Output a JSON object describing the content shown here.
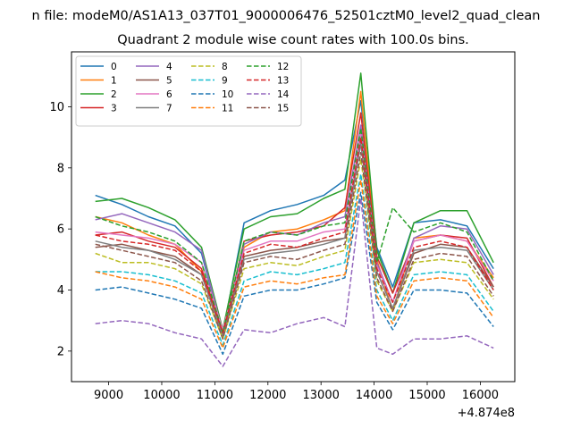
{
  "figure": {
    "supertitle": "n file: modeM0/AS1A13_037T01_9000006476_52501cztM0_level2_quad_clean",
    "title": "Quadrant 2 module wise count rates with 100.0s bins.",
    "x_offset_label": "+4.874e8"
  },
  "chart_data": {
    "type": "line",
    "title": "Quadrant 2 module wise count rates with 100.0s bins.",
    "xlabel": "",
    "ylabel": "",
    "xlim": [
      8300,
      16650
    ],
    "ylim": [
      1.0,
      11.8
    ],
    "x_offset": "+4.874e8",
    "x_ticks": [
      9000,
      10000,
      11000,
      12000,
      13000,
      14000,
      15000,
      16000
    ],
    "y_ticks": [
      2,
      4,
      6,
      8,
      10
    ],
    "grid": false,
    "legend": {
      "position": "top-left",
      "columns": 4
    },
    "x": [
      8750,
      9250,
      9750,
      10250,
      10750,
      11150,
      11550,
      12050,
      12550,
      13050,
      13450,
      13750,
      14050,
      14350,
      14750,
      15250,
      15750,
      16250
    ],
    "series": [
      {
        "name": "0",
        "color": "#1f77b4",
        "dash": "solid",
        "values": [
          7.1,
          6.8,
          6.4,
          6.1,
          5.2,
          2.6,
          6.2,
          6.6,
          6.8,
          7.1,
          7.6,
          10.2,
          5.4,
          4.1,
          6.2,
          6.3,
          6.1,
          4.7
        ]
      },
      {
        "name": "1",
        "color": "#ff7f0e",
        "dash": "solid",
        "values": [
          6.4,
          6.2,
          5.8,
          5.5,
          4.6,
          2.4,
          5.4,
          5.9,
          6.0,
          6.3,
          6.6,
          10.5,
          5.0,
          3.3,
          5.7,
          5.8,
          5.6,
          4.4
        ]
      },
      {
        "name": "2",
        "color": "#2ca02c",
        "dash": "solid",
        "values": [
          6.9,
          7.0,
          6.7,
          6.3,
          5.4,
          2.7,
          6.0,
          6.4,
          6.5,
          7.0,
          7.3,
          11.1,
          5.3,
          3.9,
          6.2,
          6.6,
          6.6,
          4.9
        ]
      },
      {
        "name": "3",
        "color": "#d62728",
        "dash": "solid",
        "values": [
          5.8,
          5.9,
          5.6,
          5.4,
          4.7,
          2.6,
          5.6,
          5.8,
          5.9,
          6.1,
          6.7,
          9.8,
          5.1,
          3.9,
          5.6,
          5.8,
          5.7,
          4.1
        ]
      },
      {
        "name": "4",
        "color": "#9467bd",
        "dash": "solid",
        "values": [
          6.3,
          6.5,
          6.2,
          5.9,
          5.3,
          2.6,
          5.5,
          5.9,
          5.8,
          6.2,
          6.4,
          9.4,
          4.9,
          3.6,
          5.7,
          6.1,
          6.0,
          4.5
        ]
      },
      {
        "name": "5",
        "color": "#8c564b",
        "dash": "solid",
        "values": [
          5.4,
          5.5,
          5.3,
          5.1,
          4.5,
          2.5,
          5.1,
          5.3,
          5.4,
          5.6,
          5.7,
          8.9,
          4.6,
          3.4,
          5.2,
          5.5,
          5.4,
          4.1
        ]
      },
      {
        "name": "6",
        "color": "#e377c2",
        "dash": "solid",
        "values": [
          5.9,
          5.8,
          5.7,
          5.5,
          4.9,
          2.7,
          5.3,
          5.6,
          5.6,
          5.9,
          6.0,
          9.1,
          4.8,
          3.6,
          5.6,
          5.8,
          5.6,
          4.3
        ]
      },
      {
        "name": "7",
        "color": "#7f7f7f",
        "dash": "solid",
        "values": [
          5.6,
          5.4,
          5.3,
          5.0,
          4.5,
          2.5,
          5.0,
          5.2,
          5.3,
          5.5,
          5.7,
          8.8,
          4.6,
          3.4,
          5.3,
          5.4,
          5.3,
          4.0
        ]
      },
      {
        "name": "8",
        "color": "#bcbd22",
        "dash": "dashed",
        "values": [
          5.2,
          4.9,
          4.9,
          4.7,
          4.2,
          2.4,
          4.7,
          4.9,
          4.8,
          5.1,
          5.3,
          8.3,
          4.3,
          3.3,
          4.9,
          5.0,
          4.9,
          3.7
        ]
      },
      {
        "name": "9",
        "color": "#17becf",
        "dash": "dashed",
        "values": [
          4.6,
          4.6,
          4.5,
          4.3,
          3.9,
          2.2,
          4.3,
          4.6,
          4.5,
          4.7,
          4.9,
          7.8,
          4.0,
          3.0,
          4.5,
          4.6,
          4.5,
          3.3
        ]
      },
      {
        "name": "10",
        "color": "#1f77b4",
        "dash": "dashed",
        "values": [
          4.0,
          4.1,
          3.9,
          3.7,
          3.4,
          1.9,
          3.8,
          4.0,
          4.0,
          4.2,
          4.4,
          7.2,
          3.6,
          2.7,
          4.0,
          4.0,
          3.9,
          2.8
        ]
      },
      {
        "name": "11",
        "color": "#ff7f0e",
        "dash": "dashed",
        "values": [
          4.6,
          4.4,
          4.3,
          4.1,
          3.7,
          2.1,
          4.1,
          4.3,
          4.2,
          4.4,
          4.5,
          7.6,
          3.8,
          2.9,
          4.3,
          4.4,
          4.3,
          3.1
        ]
      },
      {
        "name": "12",
        "color": "#2ca02c",
        "dash": "dashed",
        "values": [
          6.4,
          6.1,
          5.9,
          5.6,
          4.9,
          2.6,
          5.6,
          5.9,
          5.8,
          6.1,
          6.2,
          9.3,
          4.9,
          6.7,
          5.9,
          6.2,
          5.9,
          4.3
        ]
      },
      {
        "name": "13",
        "color": "#d62728",
        "dash": "dashed",
        "values": [
          5.8,
          5.6,
          5.5,
          5.3,
          4.6,
          2.6,
          5.2,
          5.5,
          5.4,
          5.7,
          5.9,
          9.0,
          4.7,
          3.6,
          5.4,
          5.6,
          5.4,
          4.0
        ]
      },
      {
        "name": "14",
        "color": "#9467bd",
        "dash": "dashed",
        "values": [
          2.9,
          3.0,
          2.9,
          2.6,
          2.4,
          1.5,
          2.7,
          2.6,
          2.9,
          3.1,
          2.8,
          7.0,
          2.1,
          1.9,
          2.4,
          2.4,
          2.5,
          2.1
        ]
      },
      {
        "name": "15",
        "color": "#8c564b",
        "dash": "dashed",
        "values": [
          5.5,
          5.3,
          5.1,
          4.9,
          4.3,
          2.4,
          4.9,
          5.1,
          5.0,
          5.3,
          5.5,
          8.5,
          4.4,
          3.3,
          5.0,
          5.2,
          5.1,
          3.8
        ]
      }
    ]
  }
}
